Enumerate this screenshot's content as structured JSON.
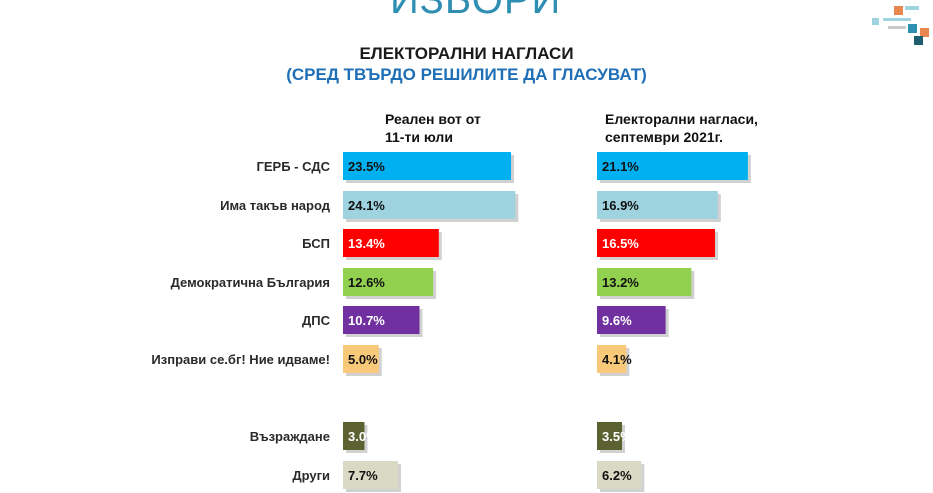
{
  "header": {
    "top_title": "ИЗБОРИ",
    "title": "ЕЛЕКТОРАЛНИ НАГЛАСИ",
    "subtitle": "(СРЕД ТВЪРДО РЕШИЛИТЕ ДА ГЛАСУВАТ)"
  },
  "columns": {
    "left": {
      "line1": "Реален вот от",
      "line2": "11-ти юли"
    },
    "right": {
      "line1": "Електорални нагласи,",
      "line2": "септември 2021г."
    }
  },
  "chart_data": {
    "type": "bar",
    "orientation": "horizontal",
    "categories": [
      "ГЕРБ - СДС",
      "Има такъв народ",
      "БСП",
      "Демократична България",
      "ДПС",
      "Изправи се.бг! Ние идваме!",
      "Възраждане",
      "Други"
    ],
    "series": [
      {
        "name": "Реален вот от 11-ти юли",
        "values": [
          23.5,
          24.1,
          13.4,
          12.6,
          10.7,
          5.0,
          3.0,
          7.7
        ],
        "labels": [
          "23.5%",
          "24.1%",
          "13.4%",
          "12.6%",
          "10.7%",
          "5.0%",
          "3.0%",
          "7.7%"
        ]
      },
      {
        "name": "Електорални нагласи, септември 2021г.",
        "values": [
          21.1,
          16.9,
          16.5,
          13.2,
          9.6,
          4.1,
          3.5,
          6.2
        ],
        "labels": [
          "21.1%",
          "16.9%",
          "16.5%",
          "13.2%",
          "9.6%",
          "4.1%",
          "3.5%",
          "6.2%"
        ]
      }
    ],
    "colors": [
      "#00b0f0",
      "#9fd3e0",
      "#ff0000",
      "#92d050",
      "#7030a0",
      "#f9c97a",
      "#5c6131",
      "#d9d9c6"
    ],
    "label_colors": [
      "#111111",
      "#111111",
      "#ffffff",
      "#111111",
      "#ffffff",
      "#111111",
      "#ffffff",
      "#111111"
    ],
    "xlim": [
      0,
      25
    ]
  }
}
